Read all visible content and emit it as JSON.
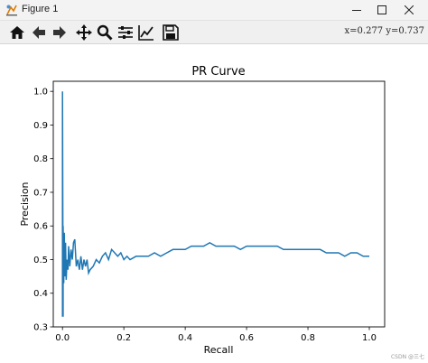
{
  "window": {
    "title": "Figure 1",
    "controls": [
      "minimize-icon",
      "maximize-icon",
      "close-icon"
    ]
  },
  "toolbar": {
    "tools": [
      "home-icon",
      "back-arrow-icon",
      "forward-arrow-icon",
      "pan-icon",
      "zoom-icon",
      "configure-subplots-icon",
      "edit-axis-icon",
      "save-icon"
    ],
    "coords_text": "x=0.277  y=0.737"
  },
  "watermark": "CSDN @三七",
  "colors": {
    "line": "#1f77b4",
    "titlebar": "#f3f3f3",
    "toolbar": "#f0f0f0"
  },
  "chart_data": {
    "type": "line",
    "title": "PR Curve",
    "xlabel": "Recall",
    "ylabel": "Precision",
    "xlim": [
      -0.03,
      1.05
    ],
    "ylim": [
      0.3,
      1.03
    ],
    "xticks": [
      "0.0",
      "0.2",
      "0.4",
      "0.6",
      "0.8",
      "1.0"
    ],
    "yticks": [
      "0.3",
      "0.4",
      "0.5",
      "0.6",
      "0.7",
      "0.8",
      "0.9",
      "1.0"
    ],
    "grid": false,
    "series": [
      {
        "x": [
          0.0,
          0.0,
          0.002,
          0.002,
          0.004,
          0.006,
          0.008,
          0.01,
          0.012,
          0.015,
          0.018,
          0.02,
          0.024,
          0.028,
          0.032,
          0.036,
          0.04,
          0.045,
          0.05,
          0.055,
          0.06,
          0.065,
          0.07,
          0.075,
          0.08,
          0.085,
          0.09,
          0.1,
          0.11,
          0.12,
          0.13,
          0.14,
          0.15,
          0.16,
          0.17,
          0.18,
          0.19,
          0.2,
          0.21,
          0.22,
          0.24,
          0.26,
          0.28,
          0.3,
          0.32,
          0.34,
          0.36,
          0.38,
          0.4,
          0.42,
          0.44,
          0.46,
          0.48,
          0.5,
          0.52,
          0.54,
          0.56,
          0.58,
          0.6,
          0.62,
          0.64,
          0.66,
          0.68,
          0.7,
          0.72,
          0.74,
          0.76,
          0.78,
          0.8,
          0.82,
          0.84,
          0.86,
          0.88,
          0.9,
          0.92,
          0.94,
          0.96,
          0.98,
          1.0
        ],
        "y": [
          0.33,
          1.0,
          0.33,
          0.6,
          0.43,
          0.58,
          0.45,
          0.55,
          0.44,
          0.5,
          0.47,
          0.54,
          0.48,
          0.53,
          0.5,
          0.55,
          0.56,
          0.48,
          0.5,
          0.47,
          0.51,
          0.47,
          0.5,
          0.48,
          0.5,
          0.46,
          0.47,
          0.48,
          0.5,
          0.49,
          0.51,
          0.52,
          0.5,
          0.53,
          0.52,
          0.51,
          0.52,
          0.5,
          0.51,
          0.5,
          0.51,
          0.51,
          0.51,
          0.52,
          0.51,
          0.52,
          0.53,
          0.53,
          0.53,
          0.54,
          0.54,
          0.54,
          0.55,
          0.54,
          0.54,
          0.54,
          0.54,
          0.53,
          0.54,
          0.54,
          0.54,
          0.54,
          0.54,
          0.54,
          0.53,
          0.53,
          0.53,
          0.53,
          0.53,
          0.53,
          0.53,
          0.52,
          0.52,
          0.52,
          0.51,
          0.52,
          0.52,
          0.51,
          0.51
        ]
      }
    ]
  }
}
